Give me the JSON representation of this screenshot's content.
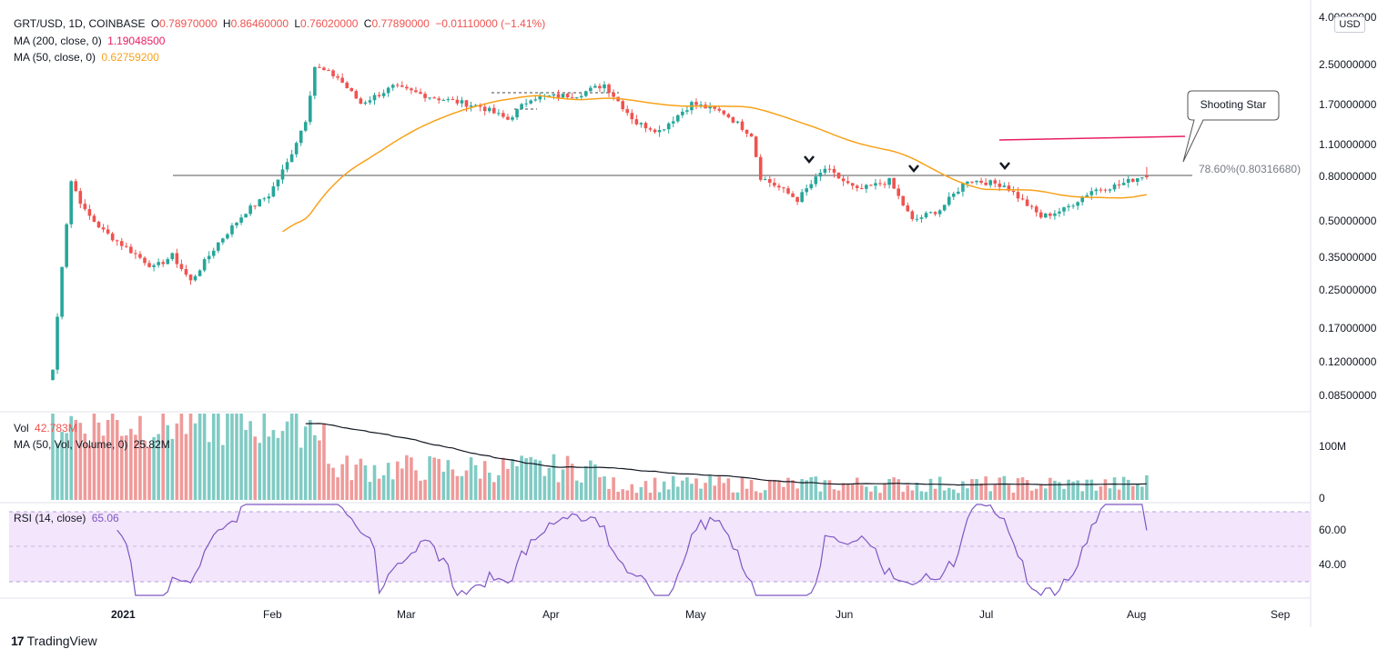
{
  "header": {
    "symbol": "GRT/USD, 1D, COINBASE",
    "open_label": "O",
    "open": "0.78970000",
    "high_label": "H",
    "high": "0.86460000",
    "low_label": "L",
    "low": "0.76020000",
    "close_label": "C",
    "close": "0.77890000",
    "change": "−0.01110000 (−1.41%)",
    "ma200_label": "MA (200, close, 0)",
    "ma200_value": "1.19048500",
    "ma50_label": "MA (50, close, 0)",
    "ma50_value": "0.62759200"
  },
  "volume_pane": {
    "label": "Vol",
    "value": "42.783M",
    "ma_label": "MA (50, Vol, Volume, 0)",
    "ma_value": "25.82M",
    "axis_labels": [
      "100M",
      "0"
    ]
  },
  "rsi_pane": {
    "label": "RSI (14, close)",
    "value": "65.06",
    "axis_labels": [
      "60.00",
      "40.00"
    ]
  },
  "price_axis": {
    "currency": "USD",
    "labels": [
      "4.00000000",
      "2.50000000",
      "1.70000000",
      "1.10000000",
      "0.80000000",
      "0.50000000",
      "0.35000000",
      "0.25000000",
      "0.17000000",
      "0.12000000",
      "0.08500000"
    ]
  },
  "annotations": {
    "callout": "Shooting Star",
    "fib_label": "78.60%(0.80316680)"
  },
  "time_axis": [
    "2021",
    "Feb",
    "Mar",
    "Apr",
    "May",
    "Jun",
    "Jul",
    "Aug",
    "Sep"
  ],
  "footer": {
    "logo": "17",
    "brand": "TradingView"
  },
  "colors": {
    "up": "#26a69a",
    "down": "#ef5350",
    "ma50": "#f7a21b",
    "ma200": "#e91e63",
    "rsi": "#7e57c2",
    "rsi_band": "#f3e5fb"
  },
  "chart_data": {
    "type": "candlestick",
    "scale": "log",
    "ylim": [
      0.075,
      4.0
    ],
    "x_range": [
      "2020-12-17",
      "2021-08-12"
    ],
    "anchors": [
      {
        "date": "2020-12-17",
        "close": 0.11
      },
      {
        "date": "2020-12-19",
        "close": 0.32
      },
      {
        "date": "2020-12-21",
        "close": 0.75
      },
      {
        "date": "2020-12-24",
        "close": 0.55
      },
      {
        "date": "2020-12-28",
        "close": 0.45
      },
      {
        "date": "2021-01-02",
        "close": 0.38
      },
      {
        "date": "2021-01-08",
        "close": 0.31
      },
      {
        "date": "2021-01-12",
        "close": 0.35
      },
      {
        "date": "2021-01-16",
        "close": 0.27
      },
      {
        "date": "2021-01-22",
        "close": 0.4
      },
      {
        "date": "2021-01-28",
        "close": 0.55
      },
      {
        "date": "2021-02-02",
        "close": 0.65
      },
      {
        "date": "2021-02-06",
        "close": 0.9
      },
      {
        "date": "2021-02-10",
        "close": 1.4
      },
      {
        "date": "2021-02-12",
        "close": 2.4
      },
      {
        "date": "2021-02-17",
        "close": 2.15
      },
      {
        "date": "2021-02-22",
        "close": 1.65
      },
      {
        "date": "2021-03-01",
        "close": 1.95
      },
      {
        "date": "2021-03-10",
        "close": 1.75
      },
      {
        "date": "2021-03-20",
        "close": 1.6
      },
      {
        "date": "2021-03-26",
        "close": 1.4
      },
      {
        "date": "2021-03-31",
        "close": 1.75
      },
      {
        "date": "2021-04-10",
        "close": 1.8
      },
      {
        "date": "2021-04-16",
        "close": 2.0
      },
      {
        "date": "2021-04-23",
        "close": 1.35
      },
      {
        "date": "2021-04-28",
        "close": 1.25
      },
      {
        "date": "2021-05-05",
        "close": 1.65
      },
      {
        "date": "2021-05-12",
        "close": 1.5
      },
      {
        "date": "2021-05-18",
        "close": 1.2
      },
      {
        "date": "2021-05-20",
        "close": 0.78
      },
      {
        "date": "2021-05-24",
        "close": 0.7
      },
      {
        "date": "2021-05-28",
        "close": 0.62
      },
      {
        "date": "2021-06-03",
        "close": 0.85
      },
      {
        "date": "2021-06-10",
        "close": 0.68
      },
      {
        "date": "2021-06-17",
        "close": 0.75
      },
      {
        "date": "2021-06-22",
        "close": 0.5
      },
      {
        "date": "2021-06-28",
        "close": 0.56
      },
      {
        "date": "2021-07-04",
        "close": 0.76
      },
      {
        "date": "2021-07-12",
        "close": 0.72
      },
      {
        "date": "2021-07-20",
        "close": 0.52
      },
      {
        "date": "2021-07-25",
        "close": 0.56
      },
      {
        "date": "2021-07-31",
        "close": 0.68
      },
      {
        "date": "2021-08-06",
        "close": 0.72
      },
      {
        "date": "2021-08-11",
        "close": 0.79
      },
      {
        "date": "2021-08-12",
        "close": 0.7789
      }
    ],
    "last_candle": {
      "date": "2021-08-12",
      "open": 0.7897,
      "high": 0.8646,
      "low": 0.7602,
      "close": 0.7789
    },
    "ma200_last": 1.190485,
    "ma50_last": 0.627592,
    "fib_level": 0.8031668,
    "volume_last": 42783000,
    "volume_ma_last": 25820000,
    "rsi_last": 65.06,
    "rsi_bands": [
      70,
      30
    ]
  }
}
